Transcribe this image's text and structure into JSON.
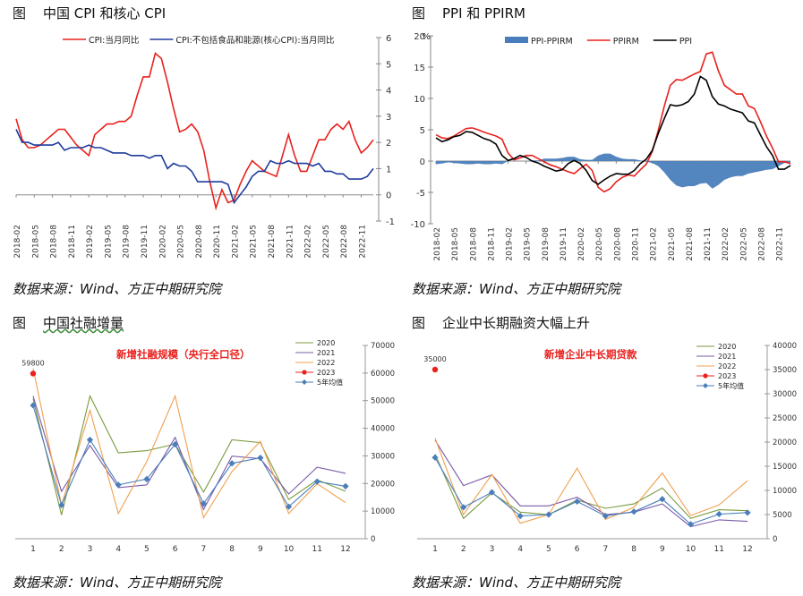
{
  "panels": [
    {
      "prefix": "图",
      "title": "中国 CPI 和核心 CPI",
      "source": "数据来源：Wind、方正中期研究院"
    },
    {
      "prefix": "图",
      "title": "PPI 和 PPIRM",
      "source": "数据来源：Wind、方正中期研究院"
    },
    {
      "prefix": "图",
      "title": "中国社融增量",
      "source": "数据来源：Wind、方正中期研究院"
    },
    {
      "prefix": "图",
      "title": "企业中长期融资大幅上升",
      "source": "数据来源：Wind、方正中期研究院"
    }
  ],
  "chart_data": [
    {
      "type": "line",
      "title": "中国 CPI 和核心 CPI",
      "x_ticks": [
        "2018-02",
        "2018-05",
        "2018-08",
        "2018-11",
        "2019-02",
        "2019-05",
        "2019-08",
        "2019-11",
        "2020-02",
        "2020-05",
        "2020-08",
        "2020-11",
        "2021-02",
        "2021-05",
        "2021-08",
        "2021-11",
        "2022-02",
        "2022-05",
        "2022-08",
        "2022-11"
      ],
      "y_right_ticks": [
        "-1",
        "0",
        "1",
        "2",
        "3",
        "4",
        "5",
        "6"
      ],
      "ylim": [
        -1,
        6
      ],
      "legend_position": "top",
      "series": [
        {
          "name": "CPI:当月同比",
          "color": "#e8211d",
          "values": [
            2.9,
            2.1,
            1.8,
            1.8,
            1.9,
            2.1,
            2.3,
            2.5,
            2.5,
            2.2,
            1.9,
            1.7,
            1.5,
            2.3,
            2.5,
            2.7,
            2.7,
            2.8,
            2.8,
            3.0,
            3.8,
            4.5,
            4.5,
            5.4,
            5.2,
            4.3,
            3.3,
            2.4,
            2.5,
            2.7,
            2.4,
            1.7,
            0.5,
            -0.5,
            0.2,
            -0.3,
            -0.2,
            0.4,
            0.9,
            1.3,
            1.1,
            0.9,
            0.8,
            0.7,
            1.5,
            2.3,
            1.5,
            0.9,
            0.9,
            1.5,
            2.1,
            2.1,
            2.5,
            2.7,
            2.5,
            2.8,
            2.1,
            1.6,
            1.8,
            2.1
          ]
        },
        {
          "name": "CPI:不包括食品和能源(核心CPI):当月同比",
          "color": "#1f3c9c",
          "values": [
            2.5,
            2.0,
            2.0,
            1.9,
            1.9,
            1.9,
            1.9,
            2.0,
            1.7,
            1.8,
            1.8,
            1.8,
            1.9,
            1.8,
            1.8,
            1.7,
            1.6,
            1.6,
            1.6,
            1.5,
            1.5,
            1.5,
            1.4,
            1.5,
            1.5,
            1.0,
            1.2,
            1.1,
            1.1,
            0.9,
            0.5,
            0.5,
            0.5,
            0.5,
            0.5,
            0.4,
            -0.3,
            0.0,
            0.3,
            0.7,
            0.9,
            0.9,
            1.3,
            1.2,
            1.2,
            1.3,
            1.2,
            1.2,
            1.2,
            1.1,
            1.2,
            0.9,
            0.9,
            0.8,
            0.8,
            0.6,
            0.6,
            0.6,
            0.7,
            1.0
          ]
        }
      ]
    },
    {
      "type": "line",
      "title": "PPI 和 PPIRM",
      "unit_label": "%",
      "x_ticks": [
        "2018-02",
        "2018-05",
        "2018-08",
        "2018-11",
        "2019-02",
        "2019-05",
        "2019-08",
        "2019-11",
        "2020-02",
        "2020-05",
        "2020-08",
        "2020-11",
        "2021-02",
        "2021-05",
        "2021-08",
        "2021-11",
        "2022-02",
        "2022-05",
        "2022-08",
        "2022-11"
      ],
      "y_left_ticks": [
        "-10",
        "-5",
        "0",
        "5",
        "10",
        "15",
        "20"
      ],
      "ylim": [
        -10,
        20
      ],
      "legend_position": "top",
      "series": [
        {
          "name": "PPI-PPIRM",
          "kind": "area",
          "color": "#4a7ebb",
          "values": [
            -0.5,
            -0.4,
            -0.2,
            -0.3,
            -0.4,
            -0.5,
            -0.5,
            -0.4,
            -0.5,
            -0.5,
            -0.4,
            -0.5,
            0.0,
            0.0,
            0.0,
            0.0,
            0.1,
            0.1,
            0.4,
            0.4,
            0.4,
            0.5,
            0.7,
            0.7,
            0.3,
            0.2,
            0.2,
            0.9,
            1.2,
            1.2,
            0.7,
            0.4,
            0.3,
            0.3,
            0.1,
            -0.1,
            -0.3,
            -0.8,
            -1.8,
            -3.0,
            -3.9,
            -4.2,
            -4.0,
            -4.0,
            -3.6,
            -3.5,
            -4.4,
            -3.8,
            -3.0,
            -2.6,
            -2.4,
            -2.4,
            -2.0,
            -1.8,
            -1.6,
            -1.4,
            -1.3,
            -0.8,
            -0.3,
            -0.3
          ]
        },
        {
          "name": "PPIRM",
          "color": "#e8211d",
          "values": [
            4.2,
            3.7,
            3.6,
            4.0,
            4.6,
            5.2,
            5.3,
            5.0,
            4.6,
            4.3,
            4.0,
            3.5,
            1.3,
            0.2,
            0.5,
            0.9,
            0.9,
            0.4,
            -0.1,
            -0.6,
            -0.9,
            -1.3,
            -1.7,
            -2.0,
            -1.2,
            -0.5,
            -1.5,
            -4.2,
            -4.9,
            -4.4,
            -3.3,
            -2.6,
            -2.2,
            -2.4,
            -1.4,
            -0.5,
            1.5,
            4.9,
            8.8,
            12.1,
            13.0,
            12.9,
            13.4,
            13.9,
            14.3,
            17.1,
            17.4,
            14.4,
            12.1,
            11.4,
            10.7,
            10.7,
            8.8,
            8.4,
            6.3,
            4.0,
            2.1,
            -0.1,
            -0.1,
            -0.4
          ]
        },
        {
          "name": "PPI",
          "color": "#000000",
          "values": [
            3.7,
            3.1,
            3.4,
            3.9,
            4.1,
            4.7,
            4.6,
            4.1,
            3.6,
            3.3,
            2.7,
            0.9,
            0.1,
            0.4,
            0.9,
            0.6,
            0.0,
            -0.3,
            -0.8,
            -1.2,
            -1.6,
            -1.4,
            -0.4,
            0.1,
            -0.4,
            -1.5,
            -3.1,
            -3.7,
            -3.0,
            -2.4,
            -2.0,
            -2.1,
            -2.1,
            -1.5,
            -0.4,
            0.3,
            1.7,
            4.4,
            6.8,
            9.0,
            8.8,
            9.0,
            9.5,
            10.7,
            13.5,
            12.9,
            10.3,
            9.1,
            8.8,
            8.3,
            8.0,
            7.7,
            6.4,
            6.1,
            4.2,
            2.3,
            0.9,
            -1.3,
            -1.3,
            -0.7
          ]
        }
      ]
    },
    {
      "type": "line",
      "title": "新增社融规模（央行全口径）",
      "categories": [
        "1",
        "2",
        "3",
        "4",
        "5",
        "6",
        "7",
        "8",
        "9",
        "10",
        "11",
        "12"
      ],
      "y_right_ticks": [
        "0",
        "10000",
        "20000",
        "30000",
        "40000",
        "50000",
        "60000",
        "70000"
      ],
      "ylim": [
        0,
        70000
      ],
      "annotation": "59800",
      "legend_position": "top-right",
      "series": [
        {
          "name": "2020",
          "color": "#7a9a3c",
          "values": [
            50700,
            8600,
            51700,
            31100,
            31900,
            34300,
            16900,
            35800,
            34800,
            14200,
            21300,
            17200
          ]
        },
        {
          "name": "2021",
          "color": "#7a5ba8",
          "values": [
            51700,
            17100,
            33800,
            18500,
            19500,
            36700,
            10600,
            29900,
            29000,
            16200,
            25900,
            23700
          ]
        },
        {
          "name": "2022",
          "color": "#f0a050",
          "values": [
            61700,
            12200,
            46500,
            9100,
            27900,
            51700,
            7600,
            24300,
            35300,
            9100,
            19900,
            13100
          ]
        },
        {
          "name": "2023",
          "color": "#e8211d",
          "marker": "circle",
          "values": [
            59800,
            null,
            null,
            null,
            null,
            null,
            null,
            null,
            null,
            null,
            null,
            null
          ]
        },
        {
          "name": "5年均值",
          "color": "#4a7ebb",
          "marker": "diamond",
          "values": [
            48300,
            12200,
            35800,
            19500,
            21600,
            34200,
            12700,
            27300,
            29300,
            11600,
            20700,
            19000
          ]
        }
      ]
    },
    {
      "type": "line",
      "title": "新增企业中长期贷款",
      "categories": [
        "1",
        "2",
        "3",
        "4",
        "5",
        "6",
        "7",
        "8",
        "9",
        "10",
        "11",
        "12"
      ],
      "y_right_ticks": [
        "0",
        "5000",
        "10000",
        "15000",
        "20000",
        "25000",
        "30000",
        "35000",
        "40000"
      ],
      "ylim": [
        0,
        40000
      ],
      "annotation": "35000",
      "legend_position": "top-right",
      "series": [
        {
          "name": "2020",
          "color": "#7a9a3c",
          "values": [
            17500,
            4200,
            9500,
            5500,
            5000,
            8000,
            6300,
            7200,
            10500,
            4200,
            6000,
            5800
          ]
        },
        {
          "name": "2021",
          "color": "#7a5ba8",
          "values": [
            20400,
            11000,
            13200,
            6800,
            6800,
            8600,
            5000,
            5500,
            7200,
            2500,
            3900,
            3600
          ]
        },
        {
          "name": "2022",
          "color": "#f0a050",
          "values": [
            20800,
            5000,
            13300,
            3200,
            5000,
            14600,
            4000,
            6500,
            13600,
            4800,
            7000,
            12000
          ]
        },
        {
          "name": "2023",
          "color": "#e8211d",
          "marker": "circle",
          "values": [
            35000,
            null,
            null,
            null,
            null,
            null,
            null,
            null,
            null,
            null,
            null,
            null
          ]
        },
        {
          "name": "5年均值",
          "color": "#4a7ebb",
          "marker": "diamond",
          "values": [
            16800,
            6500,
            9600,
            4700,
            5000,
            7700,
            4700,
            5600,
            8200,
            3000,
            5100,
            5400
          ]
        }
      ]
    }
  ]
}
